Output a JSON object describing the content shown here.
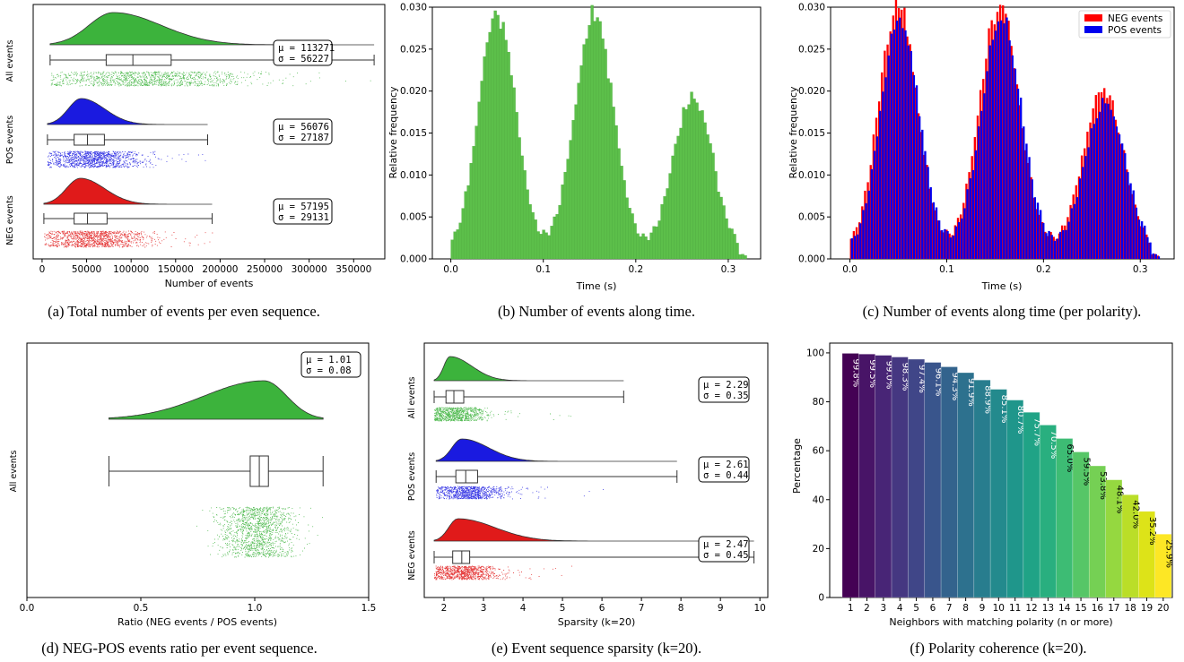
{
  "chart_data": [
    {
      "panel": "a",
      "type": "raincloud",
      "caption": "(a) Total number of events per even sequence.",
      "xlabel": "Number of events",
      "xlim": [
        -10000,
        385000
      ],
      "xticks": [
        0,
        50000,
        100000,
        150000,
        200000,
        250000,
        300000,
        350000
      ],
      "groups": [
        {
          "name": "All events",
          "color": "#3cb33c",
          "mean": 113271,
          "sd": 56227,
          "box": {
            "whisker_low": 9000,
            "q1": 72000,
            "median": 102000,
            "q3": 145000,
            "whisker_high": 373000
          },
          "kde_mode": 80000,
          "kde_max": 373000,
          "stat_text": [
            "μ = 113271",
            "σ = 56227"
          ]
        },
        {
          "name": "POS events",
          "color": "#1a1ae0",
          "mean": 56076,
          "sd": 27187,
          "box": {
            "whisker_low": 6000,
            "q1": 36000,
            "median": 51000,
            "q3": 70000,
            "whisker_high": 186000
          },
          "kde_mode": 44000,
          "kde_max": 186000,
          "stat_text": [
            "μ = 56076",
            "σ = 27187"
          ]
        },
        {
          "name": "NEG events",
          "color": "#e01a1a",
          "mean": 57195,
          "sd": 29131,
          "box": {
            "whisker_low": 2000,
            "q1": 36000,
            "median": 51000,
            "q3": 73000,
            "whisker_high": 191000
          },
          "kde_mode": 43000,
          "kde_max": 191000,
          "stat_text": [
            "μ = 57195",
            "σ = 29131"
          ]
        }
      ]
    },
    {
      "panel": "b",
      "type": "histogram",
      "caption": "(b) Number of events along time.",
      "xlabel": "Time (s)",
      "ylabel": "Relative frequency",
      "xlim": [
        -0.02,
        0.335
      ],
      "ylim": [
        0,
        0.03
      ],
      "xticks": [
        0.0,
        0.1,
        0.2,
        0.3
      ],
      "yticks": [
        0.0,
        0.005,
        0.01,
        0.015,
        0.02,
        0.025,
        0.03
      ],
      "ytick_labels": [
        "0.000",
        "0.005",
        "0.010",
        "0.015",
        "0.020",
        "0.025",
        "0.030"
      ],
      "xtick_labels": [
        "0.0",
        "0.1",
        "0.2",
        "0.3"
      ],
      "color": "#5cbf4a",
      "peaks": [
        {
          "center": 0.05,
          "height": 0.0285,
          "width": 0.02
        },
        {
          "center": 0.155,
          "height": 0.0283,
          "width": 0.021
        },
        {
          "center": 0.262,
          "height": 0.0186,
          "width": 0.021
        }
      ]
    },
    {
      "panel": "c",
      "type": "histogram",
      "caption": "(c) Number of events along time (per polarity).",
      "xlabel": "Time (s)",
      "ylabel": "Relative frequency",
      "xlim": [
        -0.02,
        0.335
      ],
      "ylim": [
        0,
        0.03
      ],
      "xticks": [
        0.0,
        0.1,
        0.2,
        0.3
      ],
      "yticks": [
        0.0,
        0.005,
        0.01,
        0.015,
        0.02,
        0.025,
        0.03
      ],
      "ytick_labels": [
        "0.000",
        "0.005",
        "0.010",
        "0.015",
        "0.020",
        "0.025",
        "0.030"
      ],
      "xtick_labels": [
        "0.0",
        "0.1",
        "0.2",
        "0.3"
      ],
      "series": [
        {
          "name": "NEG events",
          "color": "#ff0000",
          "peaks": [
            {
              "center": 0.05,
              "height": 0.0295,
              "width": 0.02
            },
            {
              "center": 0.155,
              "height": 0.029,
              "width": 0.021
            },
            {
              "center": 0.262,
              "height": 0.0193,
              "width": 0.021
            }
          ]
        },
        {
          "name": "POS events",
          "color": "#0000ee",
          "peaks": [
            {
              "center": 0.051,
              "height": 0.0278,
              "width": 0.02
            },
            {
              "center": 0.156,
              "height": 0.0278,
              "width": 0.021
            },
            {
              "center": 0.263,
              "height": 0.018,
              "width": 0.021
            }
          ]
        }
      ],
      "legend": "top-right"
    },
    {
      "panel": "d",
      "type": "raincloud",
      "caption": "(d) NEG-POS events ratio per event sequence.",
      "xlabel": "Ratio (NEG events / POS events)",
      "xlim": [
        0.0,
        1.5
      ],
      "xticks": [
        0.0,
        0.5,
        1.0,
        1.5
      ],
      "xtick_labels": [
        "0.0",
        "0.5",
        "1.0",
        "1.5"
      ],
      "groups": [
        {
          "name": "All events",
          "color": "#3cb33c",
          "mean": 1.01,
          "sd": 0.08,
          "box": {
            "whisker_low": 0.36,
            "q1": 0.98,
            "median": 1.02,
            "q3": 1.06,
            "whisker_high": 1.3
          },
          "kde_mode": 1.04,
          "kde_min": 0.36,
          "kde_max": 1.3,
          "stat_text": [
            "μ = 1.01",
            "σ = 0.08"
          ]
        }
      ]
    },
    {
      "panel": "e",
      "type": "raincloud",
      "caption": "(e) Event sequence sparsity (k=20).",
      "xlabel": "Sparsity (k=20)",
      "xlim": [
        1.5,
        10.2
      ],
      "xticks": [
        2,
        3,
        4,
        5,
        6,
        7,
        8,
        9,
        10
      ],
      "groups": [
        {
          "name": "All events",
          "color": "#3cb33c",
          "mean": 2.29,
          "sd": 0.35,
          "box": {
            "whisker_low": 1.75,
            "q1": 2.05,
            "median": 2.25,
            "q3": 2.5,
            "whisker_high": 6.55
          },
          "kde_mode": 2.15,
          "kde_min": 1.75,
          "kde_max": 6.55,
          "stat_text": [
            "μ = 2.29",
            "σ = 0.35"
          ]
        },
        {
          "name": "POS events",
          "color": "#1a1ae0",
          "mean": 2.61,
          "sd": 0.44,
          "box": {
            "whisker_low": 1.8,
            "q1": 2.3,
            "median": 2.55,
            "q3": 2.85,
            "whisker_high": 7.9
          },
          "kde_mode": 2.45,
          "kde_min": 1.8,
          "kde_max": 7.9,
          "stat_text": [
            "μ = 2.61",
            "σ = 0.44"
          ]
        },
        {
          "name": "NEG events",
          "color": "#e01a1a",
          "mean": 2.47,
          "sd": 0.45,
          "box": {
            "whisker_low": 1.75,
            "q1": 2.22,
            "median": 2.45,
            "q3": 2.65,
            "whisker_high": 9.85
          },
          "kde_mode": 2.35,
          "kde_min": 1.75,
          "kde_max": 9.85,
          "stat_text": [
            "μ = 2.47",
            "σ = 0.45"
          ]
        }
      ]
    },
    {
      "panel": "f",
      "type": "bar",
      "caption": "(f) Polarity coherence (k=20).",
      "xlabel": "Neighbors with matching polarity (n or more)",
      "ylabel": "Percentage",
      "ylim": [
        0,
        104
      ],
      "yticks": [
        0,
        20,
        40,
        60,
        80,
        100
      ],
      "categories": [
        "1",
        "2",
        "3",
        "4",
        "5",
        "6",
        "7",
        "8",
        "9",
        "10",
        "11",
        "12",
        "13",
        "14",
        "15",
        "16",
        "17",
        "18",
        "19",
        "20"
      ],
      "values": [
        99.8,
        99.5,
        99.0,
        98.3,
        97.4,
        96.1,
        94.3,
        91.9,
        88.9,
        85.1,
        80.7,
        75.7,
        70.5,
        65.0,
        59.5,
        53.8,
        48.1,
        42.0,
        35.2,
        25.9
      ],
      "labels": [
        "99.8%",
        "99.5%",
        "99.0%",
        "98.3%",
        "97.4%",
        "96.1%",
        "94.3%",
        "91.9%",
        "88.9%",
        "85.1%",
        "80.7%",
        "75.7%",
        "70.5%",
        "65.0%",
        "59.5%",
        "53.8%",
        "48.1%",
        "42.0%",
        "35.2%",
        "25.9%"
      ],
      "colors": [
        "#440154",
        "#481467",
        "#482576",
        "#453781",
        "#404688",
        "#39558c",
        "#33638d",
        "#2d718e",
        "#287d8e",
        "#238a8d",
        "#1f968b",
        "#20a386",
        "#29af7f",
        "#3dbc74",
        "#56c667",
        "#75d054",
        "#95d840",
        "#bade28",
        "#dde318",
        "#fde725"
      ]
    }
  ]
}
